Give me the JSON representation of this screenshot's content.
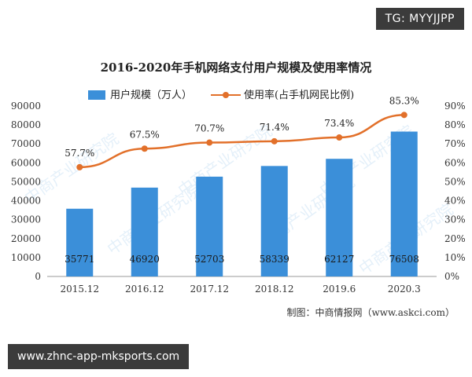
{
  "badges": {
    "top_right": "TG: MYYJJPP",
    "bottom_url": "www.zhnc-app-mksports.com"
  },
  "chart_data": {
    "type": "bar",
    "title": "2016-2020年手机网络支付用户规模及使用率情况",
    "categories": [
      "2015.12",
      "2016.12",
      "2017.12",
      "2018.12",
      "2019.6",
      "2020.3"
    ],
    "series": [
      {
        "name": "用户规模（万人）",
        "type": "bar",
        "axis": "left",
        "values": [
          35771,
          46920,
          52703,
          58339,
          62127,
          76508
        ],
        "labels": [
          "35771",
          "46920",
          "52703",
          "58339",
          "62127",
          "76508"
        ],
        "color": "#3b8fd9"
      },
      {
        "name": "使用率(占手机网民比例)",
        "type": "line",
        "axis": "right",
        "values": [
          57.7,
          67.5,
          70.7,
          71.4,
          73.4,
          85.3
        ],
        "labels": [
          "57.7%",
          "67.5%",
          "70.7%",
          "71.4%",
          "73.4%",
          "85.3%"
        ],
        "color": "#e2702a"
      }
    ],
    "y_left": {
      "min": 0,
      "max": 90000,
      "step": 10000,
      "ticks": [
        "0",
        "10000",
        "20000",
        "30000",
        "40000",
        "50000",
        "60000",
        "70000",
        "80000",
        "90000"
      ]
    },
    "y_right": {
      "min": 0,
      "max": 90,
      "step": 10,
      "ticks": [
        "0%",
        "10%",
        "20%",
        "30%",
        "40%",
        "50%",
        "60%",
        "70%",
        "80%",
        "90%"
      ]
    },
    "grid": false,
    "legend": "top-center",
    "source": "制图：中商情报网（www.askci.com）",
    "watermark": "中商产业研究院"
  }
}
